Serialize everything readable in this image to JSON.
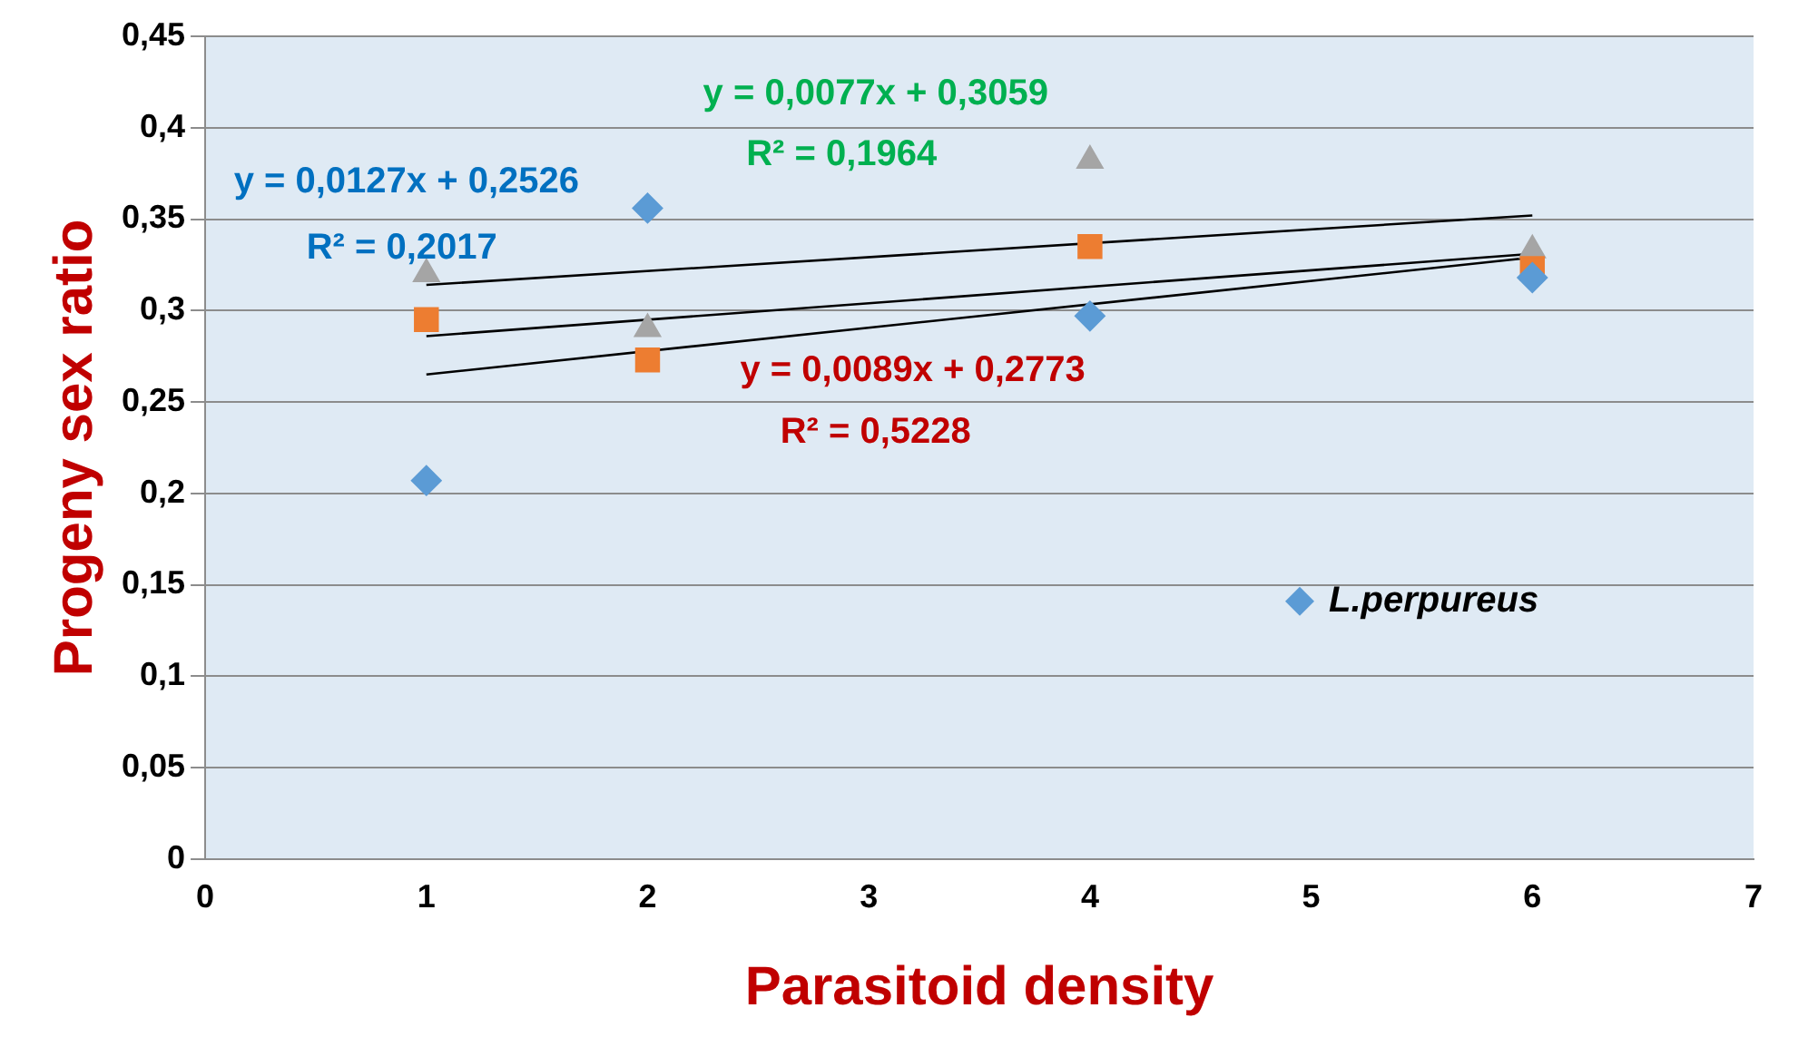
{
  "chart_data": {
    "type": "scatter",
    "xlabel": "Parasitoid density",
    "ylabel": "Progeny sex ratio",
    "xlim": [
      0,
      7
    ],
    "xticks": [
      0,
      1,
      2,
      3,
      4,
      5,
      6,
      7
    ],
    "ylim": [
      0,
      0.45
    ],
    "yticks": [
      {
        "value": 0,
        "label": "0"
      },
      {
        "value": 0.05,
        "label": "0,05"
      },
      {
        "value": 0.1,
        "label": "0,1"
      },
      {
        "value": 0.15,
        "label": "0,15"
      },
      {
        "value": 0.2,
        "label": "0,2"
      },
      {
        "value": 0.25,
        "label": "0,25"
      },
      {
        "value": 0.3,
        "label": "0,3"
      },
      {
        "value": 0.35,
        "label": "0,35"
      },
      {
        "value": 0.4,
        "label": "0,4"
      },
      {
        "value": 0.45,
        "label": "0,45"
      }
    ],
    "grid": "y",
    "legend": "bottom right",
    "series": [
      {
        "name": "L.perpureus",
        "marker": "diamond",
        "color": "#5b9bd5",
        "x": [
          1,
          2,
          4,
          6
        ],
        "values": [
          0.207,
          0.356,
          0.297,
          0.318
        ]
      },
      {
        "marker": "square",
        "color": "#ed7d31",
        "x": [
          1,
          2,
          4,
          6
        ],
        "values": [
          0.295,
          0.273,
          0.335,
          0.323
        ]
      },
      {
        "marker": "triangle",
        "color": "#a5a5a5",
        "x": [
          1,
          2,
          4,
          6
        ],
        "values": [
          0.32,
          0.29,
          0.382,
          0.333
        ]
      },
      {
        "type": "line",
        "marker": "none",
        "color": "#000000",
        "x": [
          1,
          6
        ],
        "values": [
          0.265,
          0.329
        ]
      },
      {
        "type": "line",
        "marker": "none",
        "color": "#000000",
        "x": [
          1,
          6
        ],
        "values": [
          0.286,
          0.331
        ]
      },
      {
        "type": "line",
        "marker": "none",
        "color": "#000000",
        "x": [
          1,
          6
        ],
        "values": [
          0.314,
          0.352
        ]
      }
    ],
    "annotations": [
      "y = 0,0127x + 0,2526",
      "R² = 0,2017",
      "y = 0,0077x + 0,3059",
      "R² = 0,1964",
      "y = 0,0089x + 0,2773",
      "R² = 0,5228"
    ]
  }
}
